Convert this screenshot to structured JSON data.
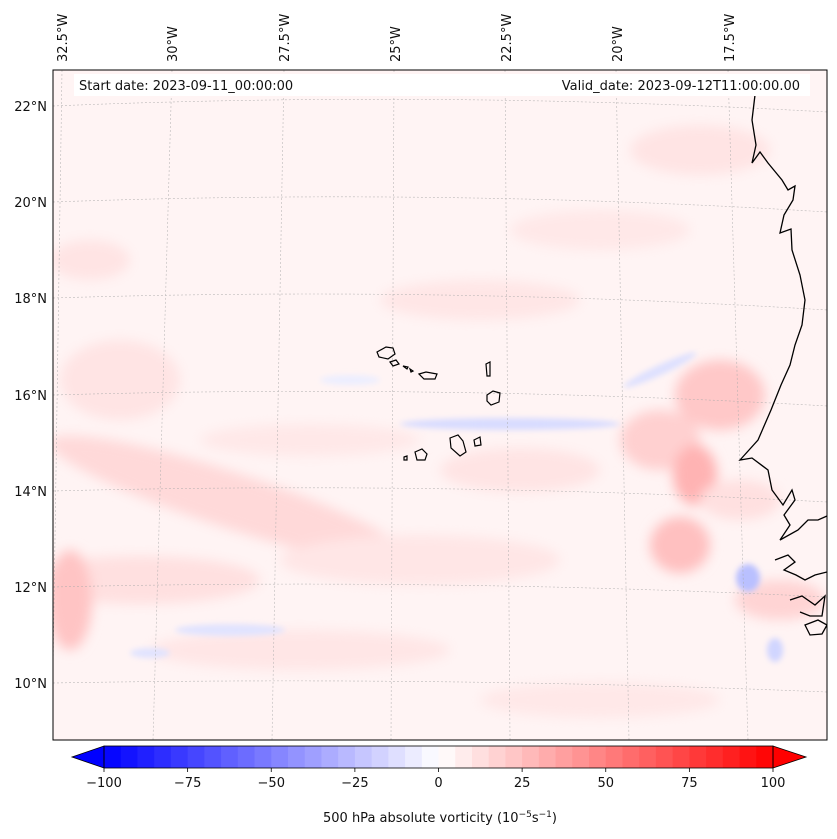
{
  "header": {
    "start_date": "Start date: 2023-09-11_00:00:00",
    "valid_date": "Valid_date: 2023-09-12T11:00:00.00"
  },
  "map": {
    "lon_labels": [
      "32.5°W",
      "30°W",
      "27.5°W",
      "25°W",
      "22.5°W",
      "20°W",
      "17.5°W"
    ],
    "lat_labels": [
      "22°N",
      "20°N",
      "18°N",
      "16°N",
      "14°N",
      "12°N",
      "10°N"
    ],
    "field": "500 hPa absolute vorticity",
    "features": [
      "Cape Verde Islands",
      "West African coastline"
    ]
  },
  "colorbar": {
    "label_main": "500 hPa absolute vorticity (10",
    "label_exp1": "−5",
    "label_mid": "s",
    "label_exp2": "−1",
    "label_end": ")",
    "ticks": [
      "−100",
      "−75",
      "−50",
      "−25",
      "0",
      "25",
      "50",
      "75",
      "100"
    ],
    "range": [
      -100,
      100
    ],
    "low_color": "#0000ff",
    "mid_color": "#ffffff",
    "high_color": "#ff0000"
  }
}
